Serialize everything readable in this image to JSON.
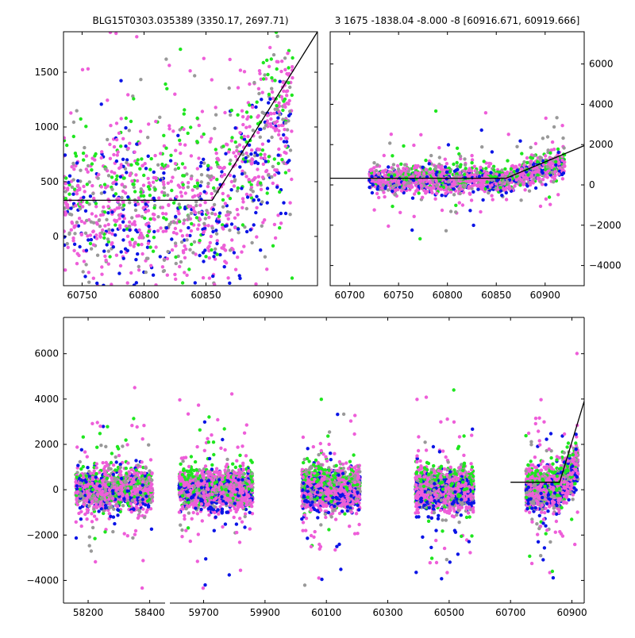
{
  "title_left": "BLG15T0303.035389 (3350.17, 2697.71)",
  "title_right": "3 1675 -1838.04 -8.000 -8 [60916.671, 60919.666]",
  "colors": {
    "blue": "#0a14e6",
    "green": "#1fe61f",
    "pink": "#ee5ed9",
    "gray": "#999999",
    "model": "#000000"
  },
  "chart_data": [
    {
      "type": "scatter",
      "name_hint": "top-left zoom",
      "xlim": [
        60735,
        60940
      ],
      "ylim": [
        -450,
        1870
      ],
      "x_ticks": [
        60750,
        60800,
        60850,
        60900
      ],
      "y_ticks": [
        0,
        500,
        1000,
        1500
      ],
      "y_axis_side": "left",
      "model_line": {
        "x": [
          60735,
          60855,
          60940
        ],
        "y": [
          330,
          330,
          1870
        ]
      },
      "data_extent": {
        "blue": {
          "x": [
            60735,
            60920
          ],
          "y_base": [
            -450,
            1800
          ]
        },
        "green": {
          "x": [
            60735,
            60920
          ],
          "y_base": [
            -300,
            1800
          ]
        },
        "pink": {
          "x": [
            60735,
            60920
          ],
          "y_base": [
            -400,
            1800
          ]
        }
      }
    },
    {
      "type": "scatter",
      "name_hint": "top-right",
      "xlim": [
        60680,
        60940
      ],
      "ylim": [
        -5000,
        7600
      ],
      "x_ticks": [
        60700,
        60750,
        60800,
        60850,
        60900
      ],
      "y_ticks": [
        -4000,
        -2000,
        0,
        2000,
        4000,
        6000
      ],
      "y_axis_side": "right",
      "model_line": {
        "x": [
          60680,
          60860,
          60940
        ],
        "y": [
          330,
          330,
          1950
        ]
      },
      "data_extent": {
        "x": [
          60720,
          60920
        ],
        "y_core": [
          -100,
          700
        ]
      }
    },
    {
      "type": "scatter",
      "name_hint": "bottom full light curve, broken x axis",
      "ylim": [
        -5000,
        7600
      ],
      "y_ticks": [
        -4000,
        -2000,
        0,
        2000,
        4000,
        6000
      ],
      "y_axis_side": "left",
      "segments": [
        {
          "xlim": [
            58120,
            58450
          ],
          "x_ticks": [
            58200,
            58400
          ],
          "season": [
            58160,
            58410
          ]
        },
        {
          "xlim": [
            59590,
            60940
          ],
          "x_ticks": [
            59700,
            59900,
            60100,
            60300,
            60500,
            60700,
            60900
          ],
          "seasons": [
            [
              59620,
              59860
            ],
            [
              60020,
              60210
            ],
            [
              60390,
              60580
            ],
            [
              60750,
              60920
            ]
          ]
        }
      ],
      "model_line": {
        "x": [
          60700,
          60860,
          60940
        ],
        "y": [
          330,
          330,
          3900
        ]
      }
    }
  ]
}
